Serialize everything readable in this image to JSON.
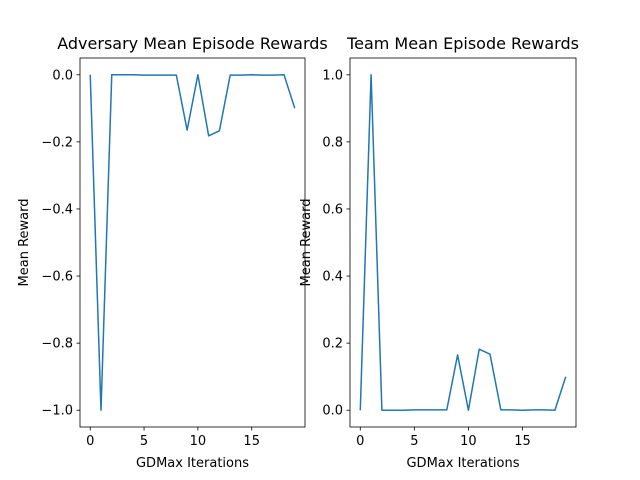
{
  "chart_data": [
    {
      "type": "line",
      "title": "Adversary Mean Episode Rewards",
      "xlabel": "GDMax Iterations",
      "ylabel": "Mean Reward",
      "xlim": [
        -0.95,
        19.95
      ],
      "ylim": [
        -1.05,
        0.05
      ],
      "xticks": [
        0,
        5,
        10,
        15
      ],
      "xtick_labels": [
        "0",
        "5",
        "10",
        "15"
      ],
      "yticks": [
        0.0,
        -0.2,
        -0.4,
        -0.6,
        -0.8,
        -1.0
      ],
      "ytick_labels": [
        "0.0",
        "−0.2",
        "−0.4",
        "−0.6",
        "−0.8",
        "−1.0"
      ],
      "grid": false,
      "series": [
        {
          "color": "#1f77b4",
          "x": [
            0,
            1,
            2,
            3,
            4,
            5,
            6,
            7,
            8,
            9,
            10,
            11,
            12,
            13,
            14,
            15,
            16,
            17,
            18,
            19
          ],
          "values": [
            0.0,
            -1.0,
            0.0,
            0.0,
            0.0,
            -0.001,
            -0.001,
            -0.001,
            -0.001,
            -0.165,
            0.0,
            -0.182,
            -0.167,
            -0.001,
            -0.001,
            0.0,
            -0.001,
            -0.001,
            0.0,
            -0.1
          ]
        }
      ]
    },
    {
      "type": "line",
      "title": "Team Mean Episode Rewards",
      "xlabel": "GDMax Iterations",
      "ylabel": "Mean Reward",
      "xlim": [
        -0.95,
        19.95
      ],
      "ylim": [
        -0.05,
        1.05
      ],
      "xticks": [
        0,
        5,
        10,
        15
      ],
      "xtick_labels": [
        "0",
        "5",
        "10",
        "15"
      ],
      "yticks": [
        0.0,
        0.2,
        0.4,
        0.6,
        0.8,
        1.0
      ],
      "ytick_labels": [
        "0.0",
        "0.2",
        "0.4",
        "0.6",
        "0.8",
        "1.0"
      ],
      "grid": false,
      "series": [
        {
          "color": "#1f77b4",
          "x": [
            0,
            1,
            2,
            3,
            4,
            5,
            6,
            7,
            8,
            9,
            10,
            11,
            12,
            13,
            14,
            15,
            16,
            17,
            18,
            19
          ],
          "values": [
            0.0,
            1.0,
            0.0,
            0.0,
            0.0,
            0.001,
            0.001,
            0.001,
            0.001,
            0.165,
            0.0,
            0.182,
            0.167,
            0.001,
            0.001,
            0.0,
            0.001,
            0.001,
            0.0,
            0.1
          ]
        }
      ]
    }
  ]
}
